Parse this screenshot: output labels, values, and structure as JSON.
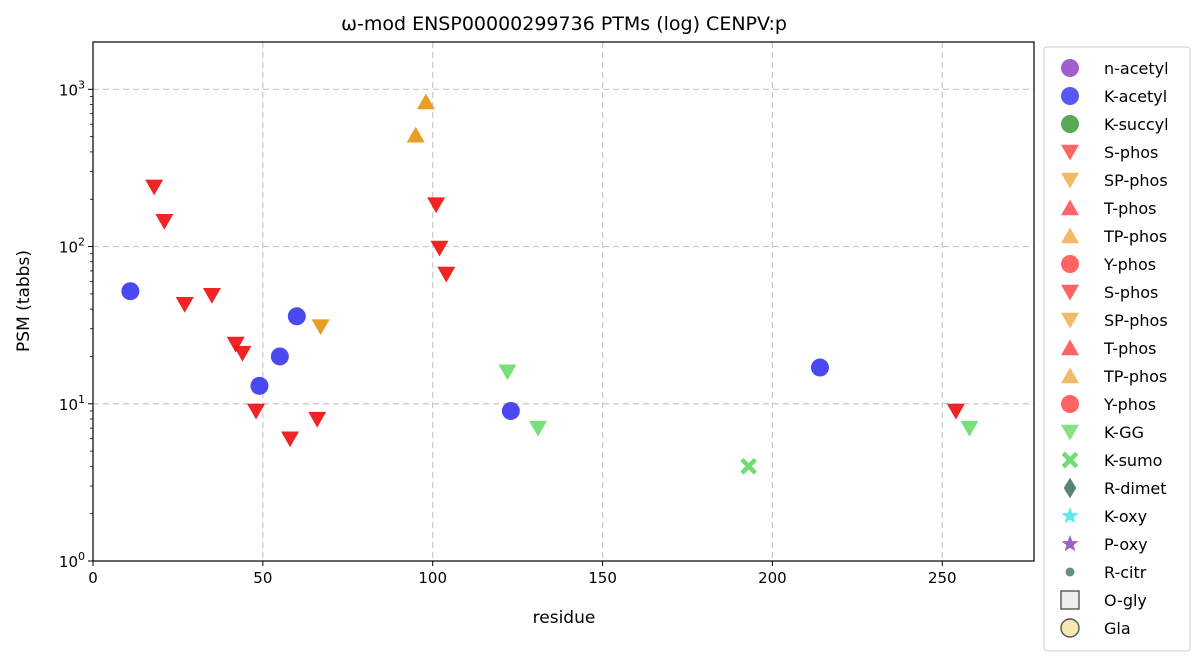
{
  "chart_data": {
    "type": "scatter",
    "title": "ω-mod ENSP00000299736 PTMs (log) CENPV:p",
    "xlabel": "residue",
    "ylabel": "PSM (tabbs)",
    "xlim": [
      0,
      277
    ],
    "ylim": [
      1,
      2000
    ],
    "yscale": "log",
    "x_ticks": [
      0,
      50,
      100,
      150,
      200,
      250
    ],
    "x_tick_labels": [
      "0",
      "50",
      "100",
      "150",
      "200",
      "250"
    ],
    "y_ticks": [
      1,
      10,
      100,
      1000
    ],
    "y_tick_labels": [
      {
        "base": "10",
        "exp": "0"
      },
      {
        "base": "10",
        "exp": "1"
      },
      {
        "base": "10",
        "exp": "2"
      },
      {
        "base": "10",
        "exp": "3"
      }
    ],
    "grid": true,
    "legend_position": "outside-right",
    "legend": [
      {
        "label": "n-acetyl",
        "marker": "circle",
        "color": "#8e44c2"
      },
      {
        "label": "K-acetyl",
        "marker": "circle",
        "color": "#3a3aee"
      },
      {
        "label": "K-succyl",
        "marker": "circle",
        "color": "#3c9a3c"
      },
      {
        "label": "S-phos",
        "marker": "triangle-down",
        "color": "#ff4a4a"
      },
      {
        "label": "SP-phos",
        "marker": "triangle-down",
        "color": "#f0ad4e"
      },
      {
        "label": "T-phos",
        "marker": "triangle-up",
        "color": "#ff4a4a"
      },
      {
        "label": "TP-phos",
        "marker": "triangle-up",
        "color": "#f0ad4e"
      },
      {
        "label": "Y-phos",
        "marker": "circle",
        "color": "#ff4a4a"
      },
      {
        "label": "S-phos",
        "marker": "triangle-down",
        "color": "#ff4a4a"
      },
      {
        "label": "SP-phos",
        "marker": "triangle-down",
        "color": "#f0ad4e"
      },
      {
        "label": "T-phos",
        "marker": "triangle-up",
        "color": "#ff4a4a"
      },
      {
        "label": "TP-phos",
        "marker": "triangle-up",
        "color": "#f0ad4e"
      },
      {
        "label": "Y-phos",
        "marker": "circle",
        "color": "#ff4a4a"
      },
      {
        "label": "K-GG",
        "marker": "triangle-down",
        "color": "#6edc6e"
      },
      {
        "label": "K-sumo",
        "marker": "x",
        "color": "#6edc6e"
      },
      {
        "label": "R-dimet",
        "marker": "diamond",
        "color": "#3d6e58"
      },
      {
        "label": "K-oxy",
        "marker": "star",
        "color": "#3fe8e8"
      },
      {
        "label": "P-oxy",
        "marker": "star",
        "color": "#8e44c2"
      },
      {
        "label": "R-citr",
        "marker": "small-circle",
        "color": "#4a7a66"
      },
      {
        "label": "O-gly",
        "marker": "square",
        "color": "#eeeeee"
      },
      {
        "label": "Gla",
        "marker": "circle-outline",
        "color": "#f4e4a4"
      }
    ],
    "series": [
      {
        "name": "K-acetyl",
        "marker": "circle",
        "color": "#3a3aee",
        "points": [
          [
            11,
            52
          ],
          [
            49,
            13
          ],
          [
            55,
            20
          ],
          [
            60,
            36
          ],
          [
            123,
            9
          ],
          [
            214,
            17
          ]
        ]
      },
      {
        "name": "S-phos",
        "marker": "triangle-down",
        "color": "#ee1111",
        "points": [
          [
            18,
            240
          ],
          [
            21,
            145
          ],
          [
            27,
            43
          ],
          [
            35,
            49
          ],
          [
            42,
            24
          ],
          [
            44,
            21
          ],
          [
            48,
            9
          ],
          [
            58,
            6
          ],
          [
            66,
            8
          ],
          [
            101,
            185
          ],
          [
            102,
            98
          ],
          [
            104,
            67
          ],
          [
            254,
            9
          ]
        ]
      },
      {
        "name": "SP-phos",
        "marker": "triangle-down",
        "color": "#e69612",
        "points": [
          [
            67,
            31
          ]
        ]
      },
      {
        "name": "TP-phos",
        "marker": "triangle-up",
        "color": "#e69612",
        "points": [
          [
            95,
            510
          ],
          [
            98,
            830
          ]
        ]
      },
      {
        "name": "K-GG",
        "marker": "triangle-down",
        "color": "#6edc6e",
        "points": [
          [
            122,
            16
          ],
          [
            131,
            7
          ],
          [
            258,
            7
          ]
        ]
      },
      {
        "name": "K-sumo",
        "marker": "x",
        "color": "#6edc6e",
        "points": [
          [
            193,
            4
          ]
        ]
      }
    ]
  }
}
